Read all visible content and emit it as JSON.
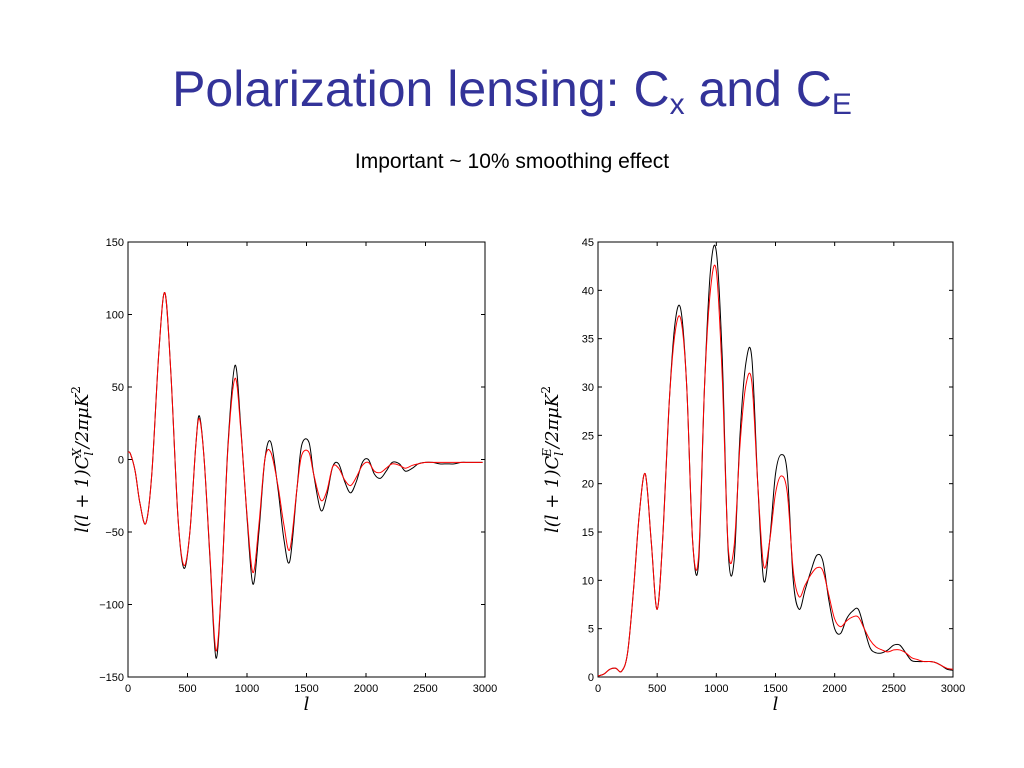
{
  "slide": {
    "title_main": "Polarization lensing: C",
    "title_sub1": "x",
    "title_mid": " and C",
    "title_sub2": "E",
    "subtitle": "Important ~ 10% smoothing effect"
  },
  "colors": {
    "title": "#333399",
    "unlensed": "#000000",
    "lensed": "#ff0000",
    "frame": "#000000"
  },
  "chart_data": [
    {
      "type": "line",
      "ylabel": "l(l + 1)C_l^X/2πμK²",
      "xlabel": "l",
      "xlim": [
        0,
        3000
      ],
      "ylim": [
        -150,
        150
      ],
      "xticks": [
        0,
        500,
        1000,
        1500,
        2000,
        2500,
        3000
      ],
      "yticks": [
        -150,
        -100,
        -50,
        0,
        50,
        100,
        150
      ],
      "grid": false,
      "x": [
        0,
        20,
        60,
        100,
        150,
        200,
        260,
        310,
        360,
        420,
        470,
        520,
        570,
        600,
        640,
        690,
        740,
        790,
        840,
        900,
        950,
        1000,
        1050,
        1100,
        1150,
        1200,
        1260,
        1310,
        1360,
        1420,
        1460,
        1520,
        1560,
        1620,
        1670,
        1720,
        1770,
        1820,
        1870,
        1920,
        1970,
        2020,
        2070,
        2120,
        2170,
        2220,
        2280,
        2330,
        2390,
        2440,
        2500,
        2560,
        2620,
        2680,
        2740,
        2800,
        2860,
        2920,
        2980
      ],
      "series": [
        {
          "values": [
            5,
            4,
            -8,
            -30,
            -44,
            -10,
            75,
            115,
            60,
            -40,
            -75,
            -50,
            10,
            30,
            0,
            -70,
            -137,
            -80,
            10,
            65,
            20,
            -40,
            -86,
            -50,
            0,
            12,
            -20,
            -55,
            -70,
            -20,
            10,
            12,
            -10,
            -35,
            -25,
            -5,
            -3,
            -15,
            -23,
            -15,
            -2,
            0,
            -10,
            -13,
            -8,
            -2,
            -3,
            -8,
            -6,
            -3,
            -2,
            -2,
            -3,
            -3,
            -3,
            -2,
            -2,
            -2,
            -2
          ]
        },
        {
          "values": [
            5,
            4,
            -8,
            -30,
            -44,
            -10,
            75,
            115,
            60,
            -40,
            -73,
            -50,
            10,
            28,
            0,
            -68,
            -132,
            -80,
            8,
            56,
            18,
            -38,
            -78,
            -45,
            0,
            5,
            -18,
            -45,
            -62,
            -20,
            3,
            5,
            -10,
            -28,
            -22,
            -5,
            -6,
            -14,
            -18,
            -12,
            -4,
            -2,
            -8,
            -9,
            -6,
            -3,
            -4,
            -6,
            -4,
            -3,
            -2,
            -2,
            -2,
            -2,
            -2,
            -2,
            -2,
            -2,
            -2
          ]
        }
      ]
    },
    {
      "type": "line",
      "ylabel": "l(l + 1)C_l^E/2πμK²",
      "xlabel": "l",
      "xlim": [
        0,
        3000
      ],
      "ylim": [
        0,
        45
      ],
      "xticks": [
        0,
        500,
        1000,
        1500,
        2000,
        2500,
        3000
      ],
      "yticks": [
        0,
        5,
        10,
        15,
        20,
        25,
        30,
        35,
        40,
        45
      ],
      "grid": false,
      "x": [
        0,
        50,
        100,
        150,
        200,
        250,
        300,
        350,
        400,
        450,
        500,
        550,
        600,
        650,
        700,
        750,
        800,
        850,
        900,
        950,
        1000,
        1050,
        1100,
        1150,
        1200,
        1250,
        1300,
        1350,
        1400,
        1450,
        1500,
        1550,
        1600,
        1650,
        1700,
        1750,
        1800,
        1850,
        1900,
        1950,
        2000,
        2050,
        2100,
        2150,
        2200,
        2250,
        2300,
        2350,
        2400,
        2450,
        2500,
        2550,
        2600,
        2650,
        2700,
        2750,
        2800,
        2850,
        2900,
        2950,
        3000
      ],
      "series": [
        {
          "values": [
            0.1,
            0.3,
            0.8,
            0.9,
            0.6,
            2.5,
            9,
            17,
            21,
            14,
            7,
            15,
            28,
            36.5,
            38,
            30,
            14,
            11.8,
            30,
            42,
            44,
            33,
            13,
            12,
            25,
            32.5,
            33,
            20,
            10,
            14,
            21,
            23,
            21,
            10,
            7,
            9,
            11,
            12.6,
            12,
            8,
            5,
            4.5,
            6,
            6.8,
            7,
            5,
            3,
            2.5,
            2.5,
            2.8,
            3.3,
            3.3,
            2.5,
            1.7,
            1.6,
            1.6,
            1.6,
            1.5,
            1.2,
            0.8,
            0.7
          ]
        },
        {
          "values": [
            0.1,
            0.3,
            0.8,
            0.9,
            0.6,
            2.5,
            9,
            17,
            21,
            14,
            7,
            15,
            28,
            35.5,
            37,
            30,
            14,
            12.5,
            30,
            40,
            42,
            31,
            13.5,
            13.5,
            24,
            30.2,
            30.5,
            20,
            11.5,
            14,
            19,
            20.8,
            19,
            11,
            8.3,
            9.5,
            10.6,
            11.3,
            11,
            8.5,
            6,
            5.2,
            5.8,
            6.2,
            6.2,
            5,
            3.8,
            3.1,
            2.8,
            2.6,
            2.8,
            2.8,
            2.5,
            2,
            1.8,
            1.6,
            1.6,
            1.5,
            1.2,
            0.9,
            0.8
          ]
        }
      ]
    }
  ]
}
